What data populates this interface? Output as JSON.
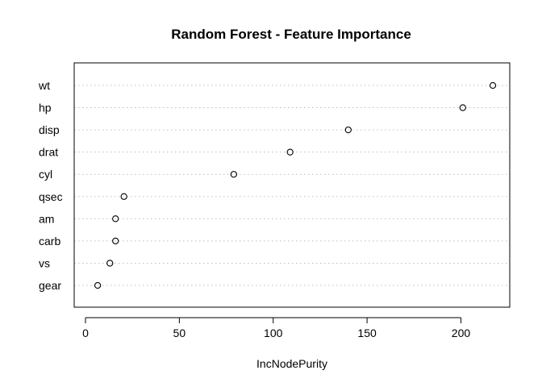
{
  "chart_data": {
    "type": "scatter",
    "title": "Random Forest - Feature Importance",
    "xlabel": "IncNodePurity",
    "ylabel": "",
    "xlim": [
      -6,
      226
    ],
    "xticks": [
      0,
      50,
      100,
      150,
      200
    ],
    "grid": "dotted horizontal lines at each feature",
    "legend": "none",
    "categories": [
      "wt",
      "hp",
      "disp",
      "drat",
      "cyl",
      "qsec",
      "am",
      "carb",
      "vs",
      "gear"
    ],
    "values": [
      217,
      201,
      140,
      109,
      79,
      20.5,
      16,
      16,
      13,
      6.5
    ],
    "marker": "open circle",
    "color": "#000000"
  }
}
